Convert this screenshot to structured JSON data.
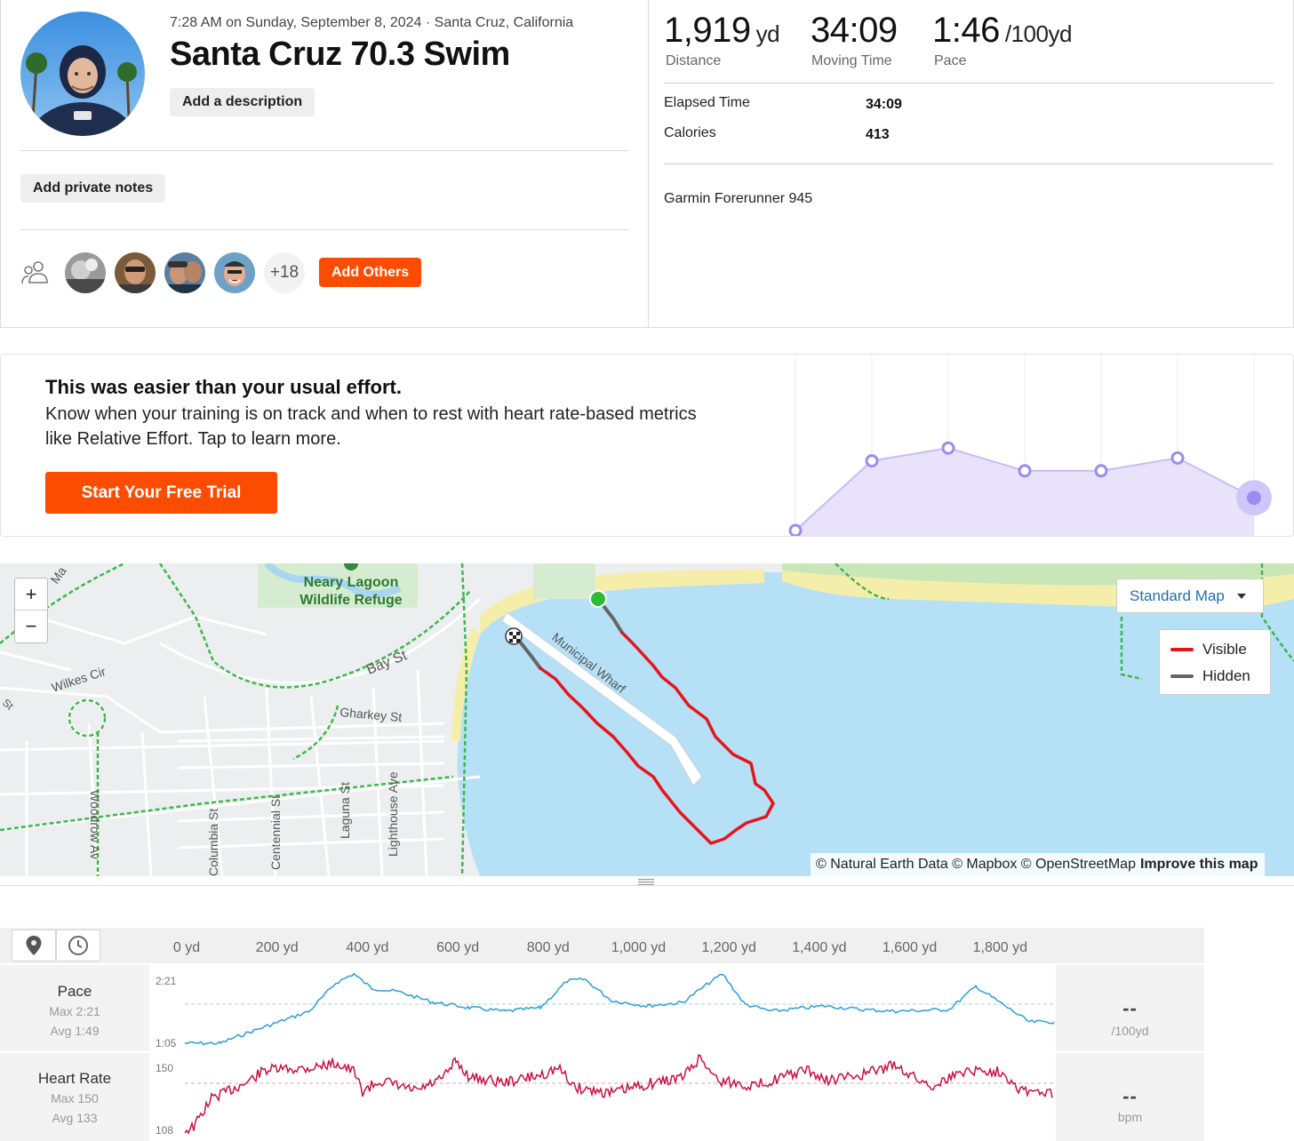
{
  "activity": {
    "meta": "7:28 AM on Sunday, September 8, 2024 · Santa Cruz, California",
    "title": "Santa Cruz 70.3 Swim",
    "add_description": "Add a description",
    "add_private_notes": "Add private notes",
    "more_athletes": "+18",
    "add_others": "Add Others"
  },
  "stats": {
    "distance": {
      "value": "1,919",
      "unit": "yd",
      "label": "Distance"
    },
    "moving_time": {
      "value": "34:09",
      "label": "Moving Time"
    },
    "pace": {
      "value": "1:46",
      "unit": "/100yd",
      "label": "Pace"
    },
    "elapsed_label": "Elapsed Time",
    "elapsed_value": "34:09",
    "calories_label": "Calories",
    "calories_value": "413",
    "device": "Garmin Forerunner 945"
  },
  "effort": {
    "title": "This was easier than your usual effort.",
    "body": "Know when your training is on track and when to rest with heart rate-based metrics like Relative Effort. Tap to learn more.",
    "cta": "Start Your Free Trial",
    "points": [
      0.0,
      0.49,
      0.58,
      0.42,
      0.42,
      0.51,
      0.23
    ],
    "accent": "#9b8cf0"
  },
  "map": {
    "labels": {
      "lagoon": "Neary Lagoon",
      "refuge": "Wildlife Refuge",
      "wharf": "Municipal Wharf",
      "bay_st": "Bay St",
      "gharkey": "Gharkey St",
      "wilkes": "Wilkes Cir",
      "woodrow": "Woodrow Av",
      "columbia": "Columbia St",
      "centennial": "Centennial St",
      "laguna": "Laguna St",
      "lighthouse": "Lighthouse Ave",
      "ma": "Ma",
      "st": "St"
    },
    "zoom_in": "+",
    "zoom_out": "−",
    "map_type": "Standard Map",
    "legend": [
      {
        "label": "Visible",
        "color": "#e8141b"
      },
      {
        "label": "Hidden",
        "color": "#666666"
      }
    ],
    "attribution": "© Natural Earth Data © Mapbox © OpenStreetMap",
    "improve": "Improve this map"
  },
  "analysis": {
    "x_ticks": [
      "0 yd",
      "200 yd",
      "400 yd",
      "600 yd",
      "800 yd",
      "1,000 yd",
      "1,200 yd",
      "1,400 yd",
      "1,600 yd",
      "1,800 yd"
    ],
    "pace": {
      "title": "Pace",
      "max": "Max 2:21",
      "avg": "Avg 1:49",
      "y_top": "2:21",
      "y_bottom": "1:05",
      "value": "--",
      "unit": "/100yd",
      "color": "#2a9fd6"
    },
    "heart_rate": {
      "title": "Heart Rate",
      "max": "Max 150",
      "avg": "Avg 133",
      "y_top": "150",
      "y_bottom": "108",
      "value": "--",
      "unit": "bpm",
      "color": "#cc1040"
    }
  }
}
